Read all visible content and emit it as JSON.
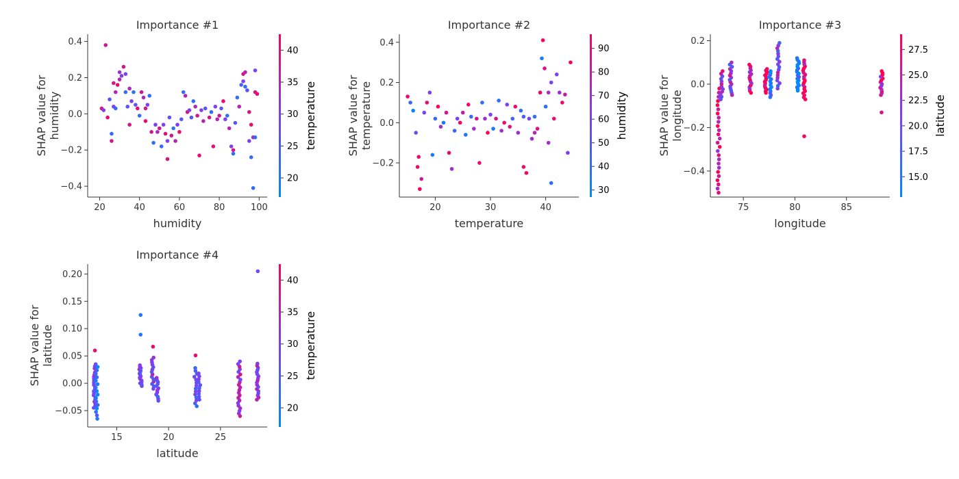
{
  "colors": {
    "low": "#008afb",
    "mid": "#7e3ff2",
    "high": "#ff0052",
    "axis": "#333333"
  },
  "chart_data": [
    {
      "type": "scatter",
      "title": "Importance #1",
      "xlabel": "humidity",
      "ylabel": [
        "SHAP value for",
        "humidity"
      ],
      "xlim": [
        14,
        104
      ],
      "ylim": [
        -0.46,
        0.44
      ],
      "xticks": [
        20,
        40,
        60,
        80,
        100
      ],
      "yticks": [
        -0.4,
        -0.2,
        0.0,
        0.2,
        0.4
      ],
      "ytick_labels": [
        "−0.4",
        "−0.2",
        "0.0",
        "0.2",
        "0.4"
      ],
      "colorbar": {
        "label": "temperature",
        "range": [
          17,
          42.5
        ],
        "ticks": [
          20,
          25,
          30,
          35,
          40
        ]
      },
      "points": [
        [
          23,
          0.38,
          38
        ],
        [
          21,
          0.03,
          38
        ],
        [
          22,
          0.02,
          30
        ],
        [
          24,
          -0.02,
          40
        ],
        [
          25,
          0.08,
          26
        ],
        [
          26,
          -0.11,
          22
        ],
        [
          26,
          -0.15,
          38
        ],
        [
          27,
          0.04,
          30
        ],
        [
          27,
          0.17,
          38
        ],
        [
          28,
          0.12,
          35
        ],
        [
          28,
          0.03,
          22
        ],
        [
          29,
          0.16,
          40
        ],
        [
          30,
          0.19,
          35
        ],
        [
          30,
          0.23,
          32
        ],
        [
          31,
          0.21,
          30
        ],
        [
          32,
          0.26,
          38
        ],
        [
          33,
          0.22,
          30
        ],
        [
          33,
          0.12,
          22
        ],
        [
          34,
          0.04,
          26
        ],
        [
          35,
          -0.06,
          38
        ],
        [
          35,
          0.14,
          34
        ],
        [
          36,
          0.07,
          30
        ],
        [
          37,
          0.12,
          22
        ],
        [
          38,
          0.05,
          26
        ],
        [
          39,
          0.03,
          40
        ],
        [
          40,
          -0.01,
          22
        ],
        [
          41,
          0.12,
          38
        ],
        [
          42,
          0.09,
          34
        ],
        [
          43,
          0.03,
          38
        ],
        [
          43,
          -0.04,
          40
        ],
        [
          44,
          0.05,
          30
        ],
        [
          45,
          0.1,
          22
        ],
        [
          46,
          -0.1,
          38
        ],
        [
          47,
          -0.16,
          22
        ],
        [
          48,
          -0.06,
          30
        ],
        [
          49,
          -0.1,
          35
        ],
        [
          50,
          -0.08,
          38
        ],
        [
          51,
          -0.18,
          22
        ],
        [
          52,
          -0.06,
          30
        ],
        [
          53,
          -0.11,
          40
        ],
        [
          54,
          -0.25,
          38
        ],
        [
          54,
          -0.15,
          30
        ],
        [
          55,
          -0.02,
          26
        ],
        [
          56,
          -0.12,
          38
        ],
        [
          57,
          -0.08,
          22
        ],
        [
          58,
          -0.15,
          35
        ],
        [
          59,
          -0.06,
          30
        ],
        [
          60,
          -0.1,
          40
        ],
        [
          61,
          -0.03,
          26
        ],
        [
          62,
          0.12,
          22
        ],
        [
          63,
          0.1,
          35
        ],
        [
          64,
          0.01,
          38
        ],
        [
          65,
          0.02,
          30
        ],
        [
          66,
          -0.02,
          26
        ],
        [
          67,
          0.07,
          22
        ],
        [
          68,
          0.04,
          34
        ],
        [
          69,
          -0.01,
          38
        ],
        [
          70,
          -0.23,
          40
        ],
        [
          71,
          0.02,
          30
        ],
        [
          72,
          -0.04,
          35
        ],
        [
          73,
          0.03,
          26
        ],
        [
          75,
          -0.02,
          38
        ],
        [
          76,
          0.01,
          22
        ],
        [
          77,
          -0.18,
          40
        ],
        [
          78,
          0.04,
          30
        ],
        [
          79,
          -0.03,
          35
        ],
        [
          80,
          -0.01,
          38
        ],
        [
          81,
          0.03,
          26
        ],
        [
          82,
          0.07,
          40
        ],
        [
          83,
          -0.03,
          30
        ],
        [
          84,
          -0.01,
          22
        ],
        [
          85,
          -0.08,
          35
        ],
        [
          86,
          -0.18,
          30
        ],
        [
          87,
          -0.2,
          38
        ],
        [
          87,
          -0.22,
          22
        ],
        [
          88,
          -0.05,
          26
        ],
        [
          89,
          0.09,
          22
        ],
        [
          90,
          0.04,
          35
        ],
        [
          91,
          0.16,
          24
        ],
        [
          92,
          0.22,
          38
        ],
        [
          92,
          0.18,
          30
        ],
        [
          93,
          0.23,
          35
        ],
        [
          93,
          0.15,
          22
        ],
        [
          94,
          0.13,
          26
        ],
        [
          95,
          0.01,
          38
        ],
        [
          95,
          -0.15,
          30
        ],
        [
          96,
          -0.24,
          22
        ],
        [
          96,
          -0.06,
          40
        ],
        [
          97,
          -0.41,
          22
        ],
        [
          97,
          -0.13,
          35
        ],
        [
          98,
          0.24,
          30
        ],
        [
          98,
          0.12,
          38
        ],
        [
          99,
          0.11,
          40
        ],
        [
          98,
          -0.13,
          22
        ]
      ]
    },
    {
      "type": "scatter",
      "title": "Importance #2",
      "xlabel": "temperature",
      "ylabel": [
        "SHAP value for",
        "temperature"
      ],
      "xlim": [
        13.5,
        46
      ],
      "ylim": [
        -0.37,
        0.44
      ],
      "xticks": [
        20,
        30,
        40
      ],
      "yticks": [
        -0.2,
        0.0,
        0.2,
        0.4
      ],
      "ytick_labels": [
        "−0.2",
        "0.0",
        "0.2",
        "0.4"
      ],
      "colorbar": {
        "label": "humidity",
        "range": [
          27,
          96
        ],
        "ticks": [
          30,
          40,
          50,
          60,
          70,
          80,
          90
        ]
      },
      "points": [
        [
          15,
          0.13,
          90
        ],
        [
          15.5,
          0.1,
          45
        ],
        [
          16,
          0.06,
          30
        ],
        [
          16.5,
          -0.05,
          55
        ],
        [
          16.8,
          -0.22,
          92
        ],
        [
          17,
          -0.17,
          90
        ],
        [
          17.2,
          -0.33,
          95
        ],
        [
          17.5,
          -0.28,
          80
        ],
        [
          18,
          0.05,
          60
        ],
        [
          18.5,
          0.1,
          88
        ],
        [
          19,
          0.15,
          62
        ],
        [
          19.5,
          -0.16,
          35
        ],
        [
          20,
          0.02,
          40
        ],
        [
          20.5,
          0.08,
          95
        ],
        [
          21,
          -0.02,
          70
        ],
        [
          21.5,
          0.0,
          33
        ],
        [
          22,
          0.05,
          85
        ],
        [
          22.5,
          -0.15,
          90
        ],
        [
          23,
          -0.23,
          70
        ],
        [
          23.5,
          -0.04,
          45
        ],
        [
          24,
          0.02,
          60
        ],
        [
          24.5,
          0.0,
          95
        ],
        [
          25,
          0.05,
          80
        ],
        [
          25.5,
          -0.06,
          35
        ],
        [
          26,
          0.09,
          90
        ],
        [
          26.5,
          0.03,
          40
        ],
        [
          27,
          -0.03,
          70
        ],
        [
          27.5,
          0.02,
          85
        ],
        [
          28,
          -0.2,
          90
        ],
        [
          28.5,
          0.1,
          40
        ],
        [
          29,
          0.02,
          70
        ],
        [
          29.5,
          -0.05,
          95
        ],
        [
          30,
          0.04,
          60
        ],
        [
          30.5,
          -0.03,
          33
        ],
        [
          31,
          0.02,
          85
        ],
        [
          31.5,
          0.11,
          40
        ],
        [
          32,
          -0.04,
          70
        ],
        [
          32.5,
          0.0,
          90
        ],
        [
          33,
          0.09,
          60
        ],
        [
          33.5,
          -0.02,
          85
        ],
        [
          34,
          0.02,
          45
        ],
        [
          34.5,
          0.08,
          90
        ],
        [
          35,
          -0.05,
          70
        ],
        [
          35.5,
          0.06,
          40
        ],
        [
          36,
          -0.22,
          90
        ],
        [
          36.5,
          -0.25,
          95
        ],
        [
          37,
          0.02,
          60
        ],
        [
          37.5,
          -0.08,
          70
        ],
        [
          38,
          0.03,
          40
        ],
        [
          38.5,
          -0.03,
          85
        ],
        [
          39,
          0.15,
          92
        ],
        [
          39.3,
          0.32,
          33
        ],
        [
          39.5,
          0.41,
          95
        ],
        [
          39.8,
          0.27,
          85
        ],
        [
          40,
          0.08,
          40
        ],
        [
          40.5,
          -0.1,
          70
        ],
        [
          41,
          -0.3,
          40
        ],
        [
          41.5,
          0.02,
          90
        ],
        [
          42,
          0.24,
          60
        ],
        [
          42.5,
          0.15,
          70
        ],
        [
          43,
          0.1,
          90
        ],
        [
          43.5,
          0.14,
          80
        ],
        [
          44,
          -0.15,
          60
        ],
        [
          44.5,
          0.3,
          95
        ],
        [
          40.5,
          0.15,
          70
        ],
        [
          41,
          0.2,
          60
        ],
        [
          38,
          -0.05,
          75
        ],
        [
          36,
          0.03,
          50
        ]
      ]
    },
    {
      "type": "scatter",
      "title": "Importance #3",
      "xlabel": "longitude",
      "ylabel": [
        "SHAP value for",
        "longitude"
      ],
      "xlim": [
        71.8,
        89.2
      ],
      "ylim": [
        -0.52,
        0.23
      ],
      "xticks": [
        75,
        80,
        85
      ],
      "yticks": [
        -0.4,
        -0.2,
        0.0,
        0.2
      ],
      "ytick_labels": [
        "−0.4",
        "−0.2",
        "0.0",
        "0.2"
      ],
      "colorbar": {
        "label": "latitude",
        "range": [
          13,
          29
        ],
        "ticks": [
          15.0,
          17.5,
          20.0,
          22.5,
          25.0,
          27.5
        ],
        "tick_labels": [
          "15.0",
          "17.5",
          "20.0",
          "22.5",
          "25.0",
          "27.5"
        ]
      },
      "strips": [
        {
          "x": 72.6,
          "y_min": -0.5,
          "y_max": -0.02,
          "c": 26.8,
          "n": 26
        },
        {
          "x": 72.9,
          "y_min": -0.07,
          "y_max": 0.06,
          "c": 22.5,
          "n": 12
        },
        {
          "x": 73.8,
          "y_min": -0.05,
          "y_max": 0.1,
          "c": 21,
          "n": 16
        },
        {
          "x": 75.7,
          "y_min": -0.04,
          "y_max": 0.09,
          "c": 27.5,
          "n": 16
        },
        {
          "x": 77.2,
          "y_min": -0.04,
          "y_max": 0.07,
          "c": 28.5,
          "n": 16
        },
        {
          "x": 77.6,
          "y_min": -0.06,
          "y_max": 0.06,
          "c": 13.5,
          "n": 14
        },
        {
          "x": 78.4,
          "y_min": -0.02,
          "y_max": 0.19,
          "c": 21.5,
          "n": 18
        },
        {
          "x": 80.3,
          "y_min": -0.03,
          "y_max": 0.12,
          "c": 13.1,
          "n": 20
        },
        {
          "x": 80.9,
          "y_min": -0.07,
          "y_max": 0.11,
          "c": 28.6,
          "n": 20
        },
        {
          "x": 88.4,
          "y_min": -0.05,
          "y_max": 0.06,
          "c": 26.5,
          "n": 14
        }
      ],
      "points": [
        [
          80.9,
          -0.24,
          28.6
        ],
        [
          88.4,
          -0.13,
          26.5
        ]
      ]
    },
    {
      "type": "scatter",
      "title": "Importance #4",
      "xlabel": "latitude",
      "ylabel": [
        "SHAP value for",
        "latitude"
      ],
      "xlim": [
        12.2,
        29.5
      ],
      "ylim": [
        -0.08,
        0.218
      ],
      "xticks": [
        15,
        20,
        25
      ],
      "yticks": [
        -0.05,
        0.0,
        0.05,
        0.1,
        0.15,
        0.2
      ],
      "ytick_labels": [
        "−0.05",
        "0.00",
        "0.05",
        "0.10",
        "0.15",
        "0.20"
      ],
      "colorbar": {
        "label": "temperature",
        "range": [
          17,
          42.5
        ],
        "ticks": [
          20,
          25,
          30,
          35,
          40
        ]
      },
      "strips": [
        {
          "x": 12.9,
          "y_min": -0.045,
          "y_max": 0.035,
          "c": 30,
          "n": 22
        },
        {
          "x": 13.1,
          "y_min": -0.065,
          "y_max": 0.03,
          "c": 21,
          "n": 16
        },
        {
          "x": 17.3,
          "y_min": -0.005,
          "y_max": 0.033,
          "c": 28,
          "n": 16
        },
        {
          "x": 18.5,
          "y_min": -0.01,
          "y_max": 0.047,
          "c": 30,
          "n": 14
        },
        {
          "x": 18.9,
          "y_min": -0.032,
          "y_max": 0.01,
          "c": 28,
          "n": 12
        },
        {
          "x": 22.6,
          "y_min": -0.042,
          "y_max": 0.028,
          "c": 26,
          "n": 14
        },
        {
          "x": 23.0,
          "y_min": -0.03,
          "y_max": 0.018,
          "c": 29,
          "n": 10
        },
        {
          "x": 26.8,
          "y_min": -0.06,
          "y_max": 0.04,
          "c": 33,
          "n": 22
        },
        {
          "x": 28.6,
          "y_min": -0.03,
          "y_max": 0.036,
          "c": 32,
          "n": 18
        }
      ],
      "points": [
        [
          12.9,
          0.06,
          40
        ],
        [
          17.3,
          0.125,
          20
        ],
        [
          17.3,
          0.089,
          20
        ],
        [
          18.5,
          0.067,
          40
        ],
        [
          22.6,
          0.051,
          40
        ],
        [
          28.6,
          0.205,
          28
        ]
      ]
    }
  ]
}
